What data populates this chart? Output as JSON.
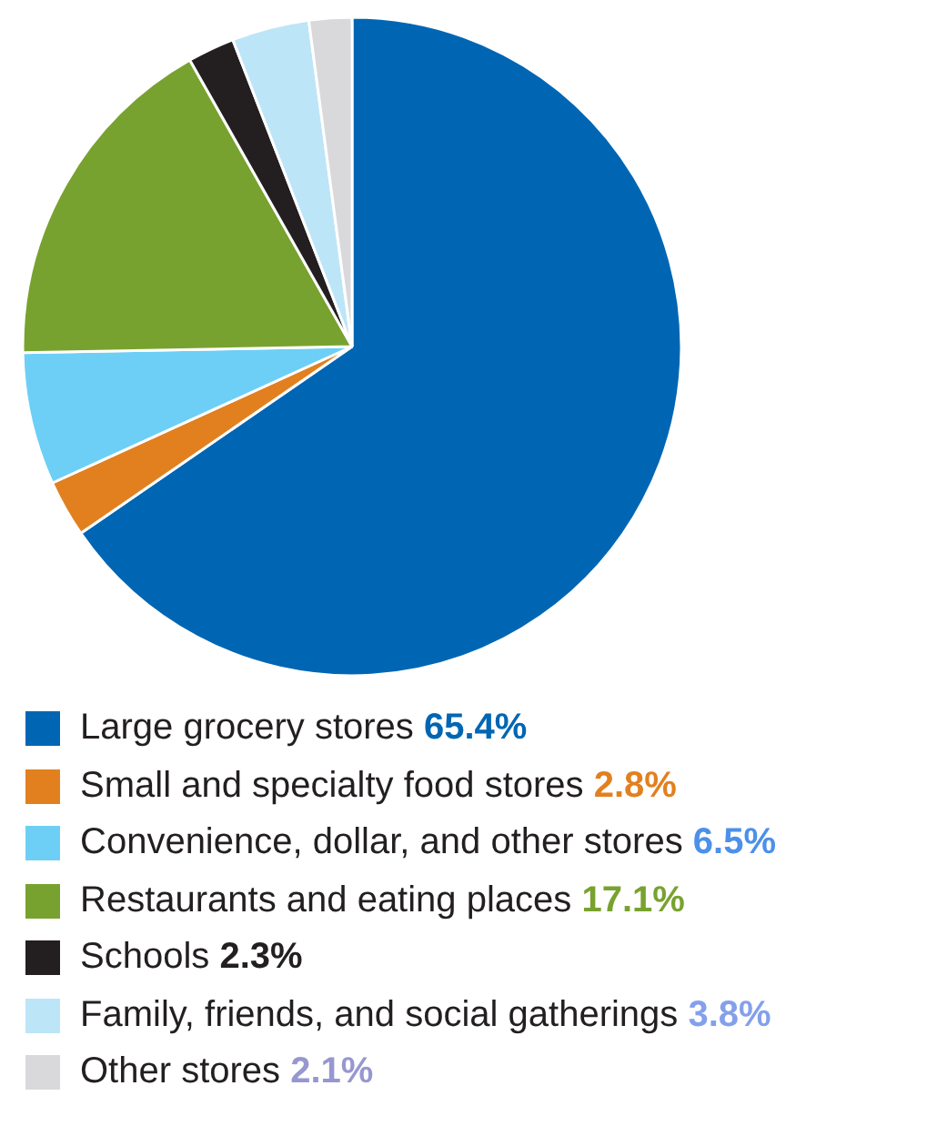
{
  "chart_data": {
    "type": "pie",
    "categories": [
      "Large grocery stores",
      "Small and specialty food stores",
      "Convenience, dollar, and other stores",
      "Restaurants and eating places",
      "Schools",
      "Family, friends, and social gatherings",
      "Other stores"
    ],
    "values": [
      65.4,
      2.8,
      6.5,
      17.1,
      2.3,
      3.8,
      2.1
    ],
    "colors": [
      "#0066b3",
      "#e2801f",
      "#6dcff6",
      "#78a22f",
      "#231f20",
      "#bde5f8",
      "#d9d9db"
    ],
    "value_labels": [
      "65.4%",
      "2.8%",
      "6.5%",
      "17.1%",
      "2.3%",
      "3.8%",
      "2.1%"
    ],
    "legend": "bottom"
  }
}
